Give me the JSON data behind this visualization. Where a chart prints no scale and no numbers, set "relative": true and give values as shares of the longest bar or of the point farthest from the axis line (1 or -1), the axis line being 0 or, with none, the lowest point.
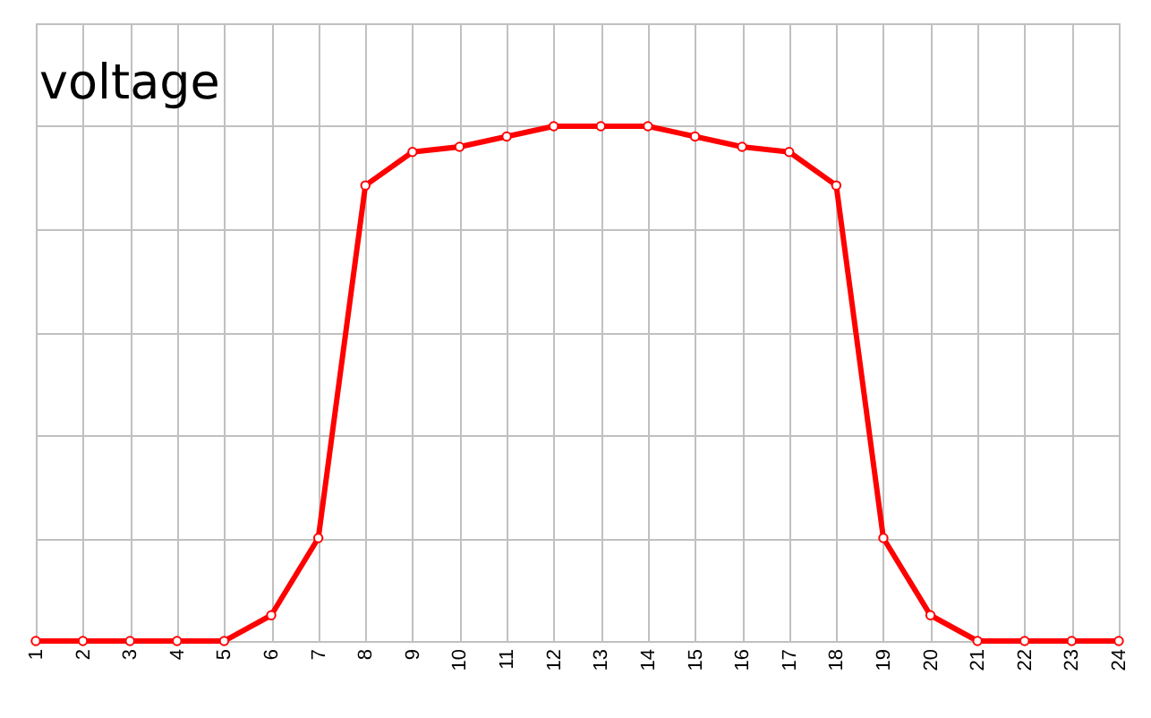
{
  "chart_data": {
    "type": "line",
    "title": "voltage",
    "relative": true,
    "categories": [
      "1",
      "2",
      "3",
      "4",
      "5",
      "6",
      "7",
      "8",
      "9",
      "10",
      "11",
      "12",
      "13",
      "14",
      "15",
      "16",
      "17",
      "18",
      "19",
      "20",
      "21",
      "22",
      "23",
      "24"
    ],
    "series": [
      {
        "color": "#ff0000",
        "values": [
          0,
          0,
          0,
          0,
          0,
          0.05,
          0.2,
          0.885,
          0.95,
          0.96,
          0.98,
          1,
          1,
          1,
          0.98,
          0.96,
          0.95,
          0.885,
          0.2,
          0.05,
          0,
          0,
          0,
          0
        ]
      }
    ],
    "grid": true,
    "marker": "circle",
    "line_style": "solid"
  }
}
